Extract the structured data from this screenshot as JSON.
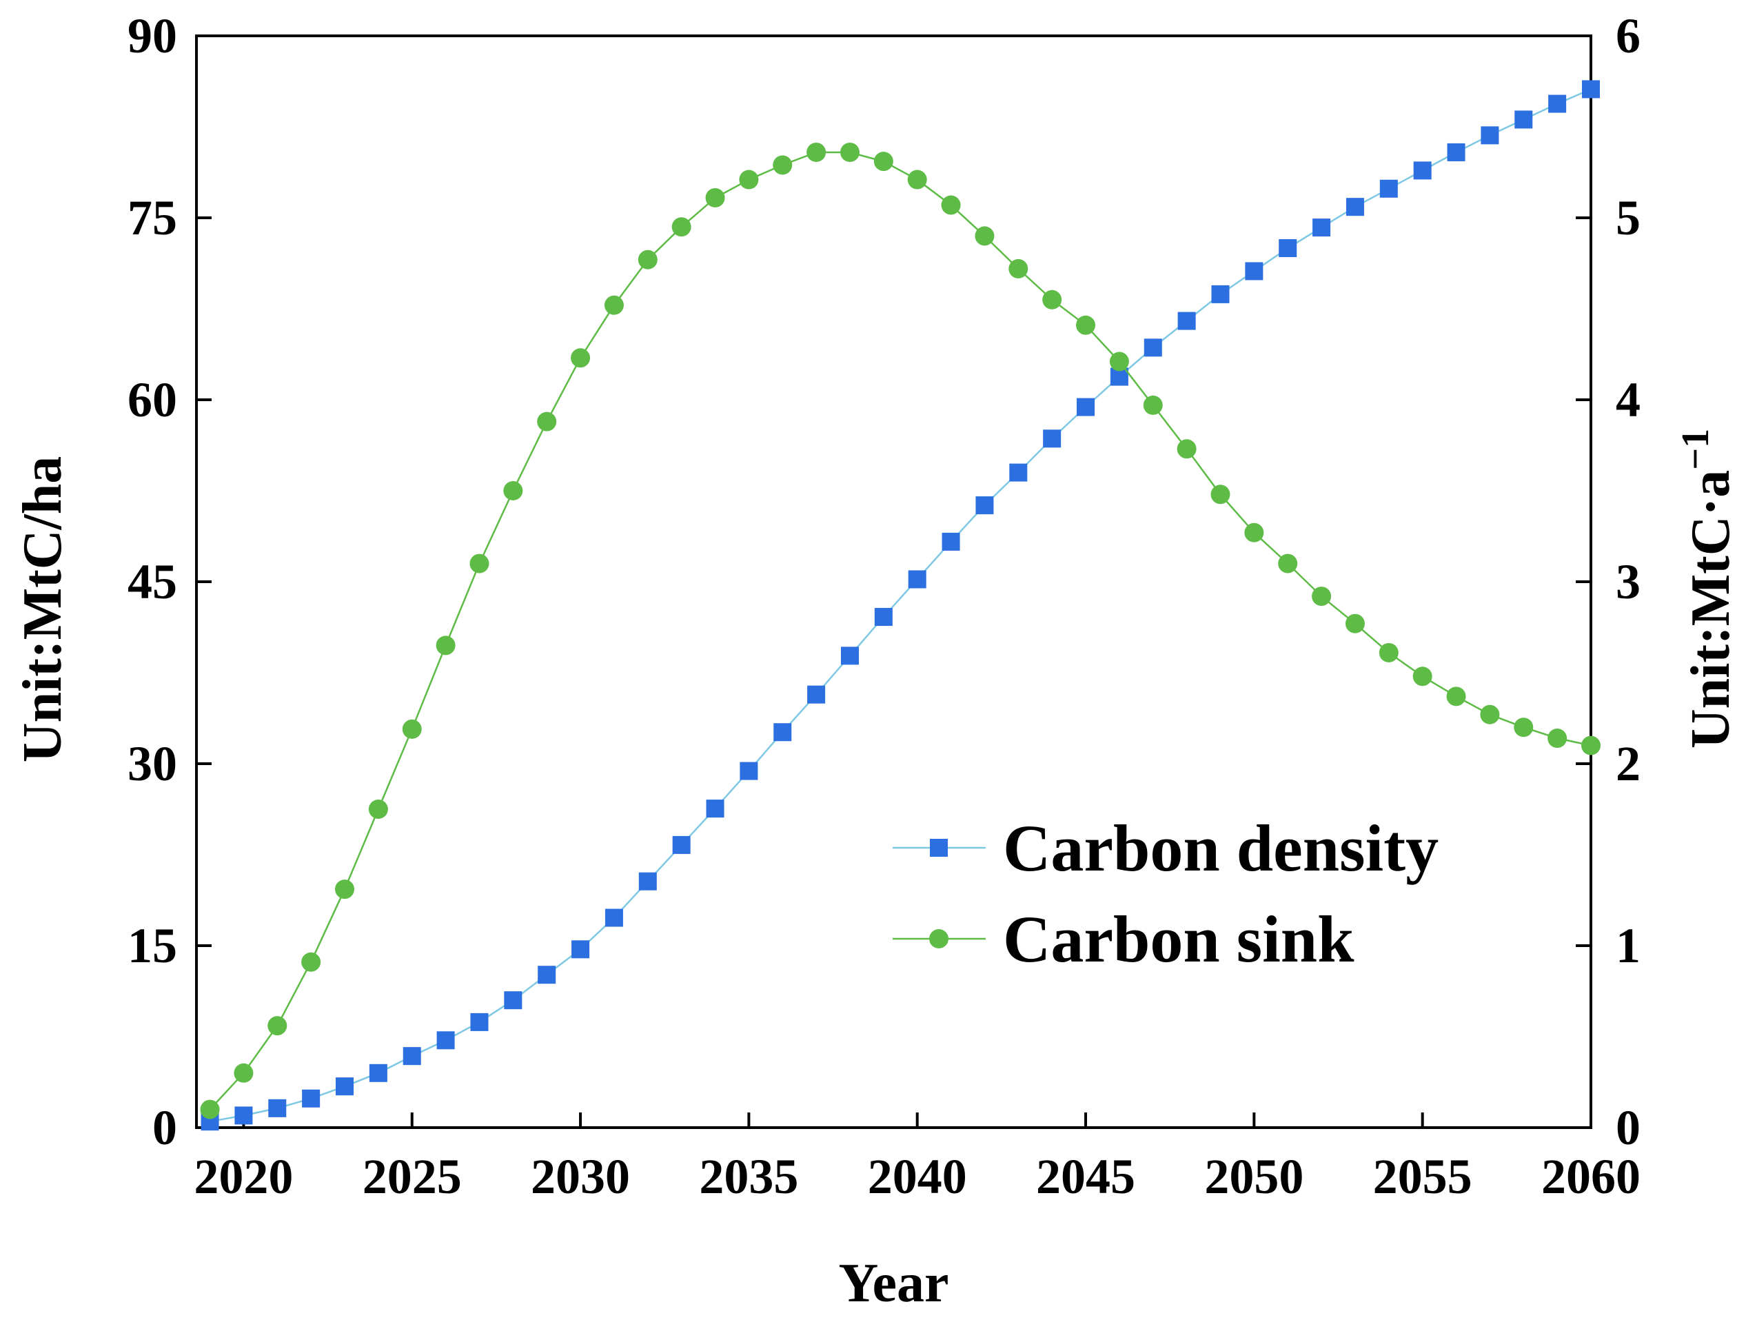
{
  "chart_data": {
    "type": "line",
    "xlabel": "Year",
    "ylabel_left": "Unit:MtC/ha",
    "ylabel_right_base": "Unit:MtC·a",
    "ylabel_right_sup": "−1",
    "xlim": [
      2018.6,
      2060
    ],
    "ylim_left": [
      0,
      90
    ],
    "ylim_right": [
      0,
      6
    ],
    "x_ticks": [
      2020,
      2025,
      2030,
      2035,
      2040,
      2045,
      2050,
      2055,
      2060
    ],
    "y_ticks_left": [
      0,
      15,
      30,
      45,
      60,
      75,
      90
    ],
    "y_ticks_right": [
      0,
      1,
      2,
      3,
      4,
      5,
      6
    ],
    "legend_position": "center-right",
    "series": [
      {
        "name": "Carbon density",
        "axis": "left",
        "marker": "square",
        "color": "#2B6FE0",
        "line_color": "#7EC8E3",
        "x": [
          2019,
          2020,
          2021,
          2022,
          2023,
          2024,
          2025,
          2026,
          2027,
          2028,
          2029,
          2030,
          2031,
          2032,
          2033,
          2034,
          2035,
          2036,
          2037,
          2038,
          2039,
          2040,
          2041,
          2042,
          2043,
          2044,
          2045,
          2046,
          2047,
          2048,
          2049,
          2050,
          2051,
          2052,
          2053,
          2054,
          2055,
          2056,
          2057,
          2058,
          2059,
          2060
        ],
        "values": [
          0.5,
          1.0,
          1.6,
          2.4,
          3.4,
          4.5,
          5.9,
          7.2,
          8.7,
          10.5,
          12.6,
          14.7,
          17.3,
          20.3,
          23.3,
          26.3,
          29.4,
          32.6,
          35.7,
          38.9,
          42.1,
          45.2,
          48.3,
          51.3,
          54.0,
          56.8,
          59.4,
          61.9,
          64.3,
          66.5,
          68.7,
          70.6,
          72.5,
          74.2,
          75.9,
          77.4,
          78.9,
          80.4,
          81.8,
          83.1,
          84.4,
          85.6
        ]
      },
      {
        "name": "Carbon sink",
        "axis": "right",
        "marker": "circle",
        "color": "#5DBB46",
        "line_color": "#5DBB46",
        "x": [
          2019,
          2020,
          2021,
          2022,
          2023,
          2024,
          2025,
          2026,
          2027,
          2028,
          2029,
          2030,
          2031,
          2032,
          2033,
          2034,
          2035,
          2036,
          2037,
          2038,
          2039,
          2040,
          2041,
          2042,
          2043,
          2044,
          2045,
          2046,
          2047,
          2048,
          2049,
          2050,
          2051,
          2052,
          2053,
          2054,
          2055,
          2056,
          2057,
          2058,
          2059,
          2060
        ],
        "values": [
          0.1,
          0.3,
          0.56,
          0.91,
          1.31,
          1.75,
          2.19,
          2.65,
          3.1,
          3.5,
          3.88,
          4.23,
          4.52,
          4.77,
          4.95,
          5.11,
          5.21,
          5.29,
          5.36,
          5.36,
          5.31,
          5.21,
          5.07,
          4.9,
          4.72,
          4.55,
          4.41,
          4.21,
          3.97,
          3.73,
          3.48,
          3.27,
          3.1,
          2.92,
          2.77,
          2.61,
          2.48,
          2.37,
          2.27,
          2.2,
          2.14,
          2.1
        ]
      }
    ]
  }
}
